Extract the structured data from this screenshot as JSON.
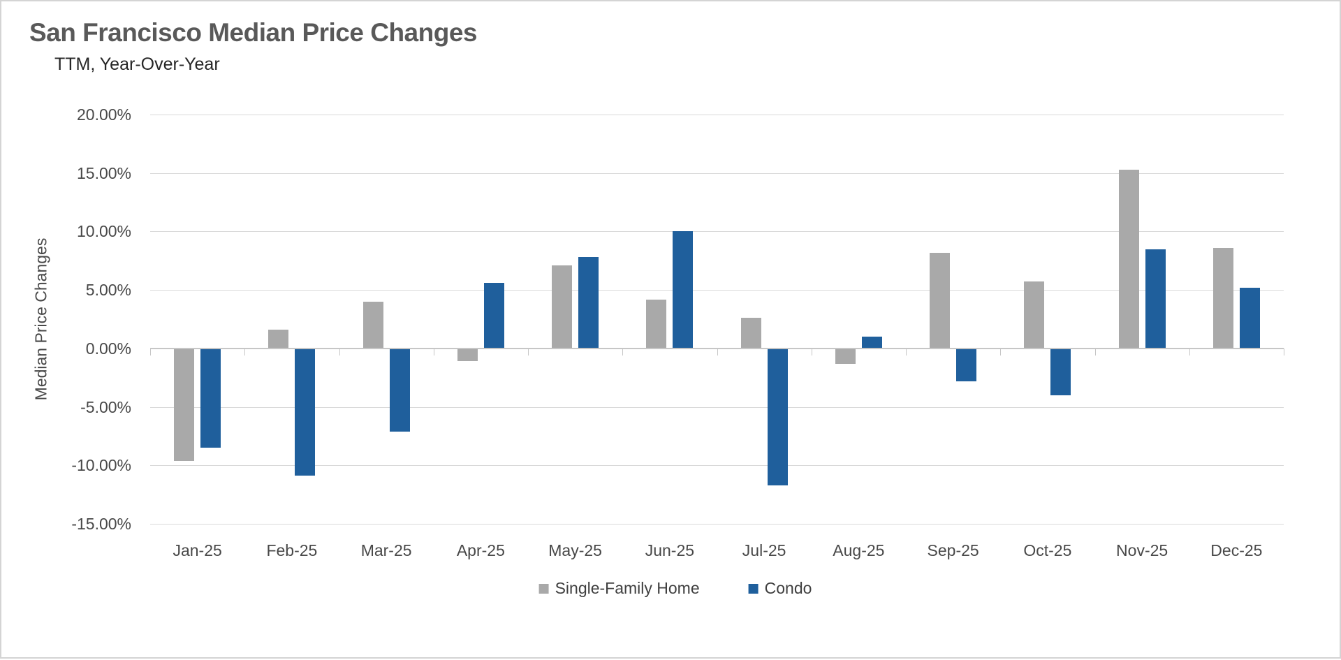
{
  "header": {
    "title": "San Francisco Median Price Changes",
    "subtitle": "TTM, Year-Over-Year"
  },
  "chart_data": {
    "type": "bar",
    "title": "San Francisco Median Price Changes",
    "subtitle": "TTM, Year-Over-Year",
    "xlabel": "",
    "ylabel": "Median Price Changes",
    "categories": [
      "Jan-25",
      "Feb-25",
      "Mar-25",
      "Apr-25",
      "May-25",
      "Jun-25",
      "Jul-25",
      "Aug-25",
      "Sep-25",
      "Oct-25",
      "Nov-25",
      "Dec-25"
    ],
    "series": [
      {
        "name": "Single-Family Home",
        "color": "#a9a9a9",
        "values": [
          -9.6,
          1.6,
          4.0,
          -1.1,
          7.1,
          4.2,
          2.6,
          -1.3,
          8.2,
          5.7,
          15.3,
          8.6
        ]
      },
      {
        "name": "Condo",
        "color": "#1f5f9c",
        "values": [
          -8.5,
          -10.9,
          -7.1,
          5.6,
          7.8,
          10.0,
          -11.7,
          1.0,
          -2.8,
          -4.0,
          8.5,
          5.2
        ]
      }
    ],
    "y_axis": {
      "min": -15,
      "max": 20,
      "step": 5,
      "tick_labels": [
        "20.00%",
        "15.00%",
        "10.00%",
        "5.00%",
        "0.00%",
        "-5.00%",
        "-10.00%",
        "-15.00%"
      ]
    },
    "grid": true,
    "legend_position": "bottom",
    "colors": {
      "title": "#595959",
      "subtitle": "#262626",
      "axis_text": "#484848",
      "gridline": "#d9d9d9",
      "axis_line": "#c6c6c6",
      "background": "#ffffff"
    }
  }
}
